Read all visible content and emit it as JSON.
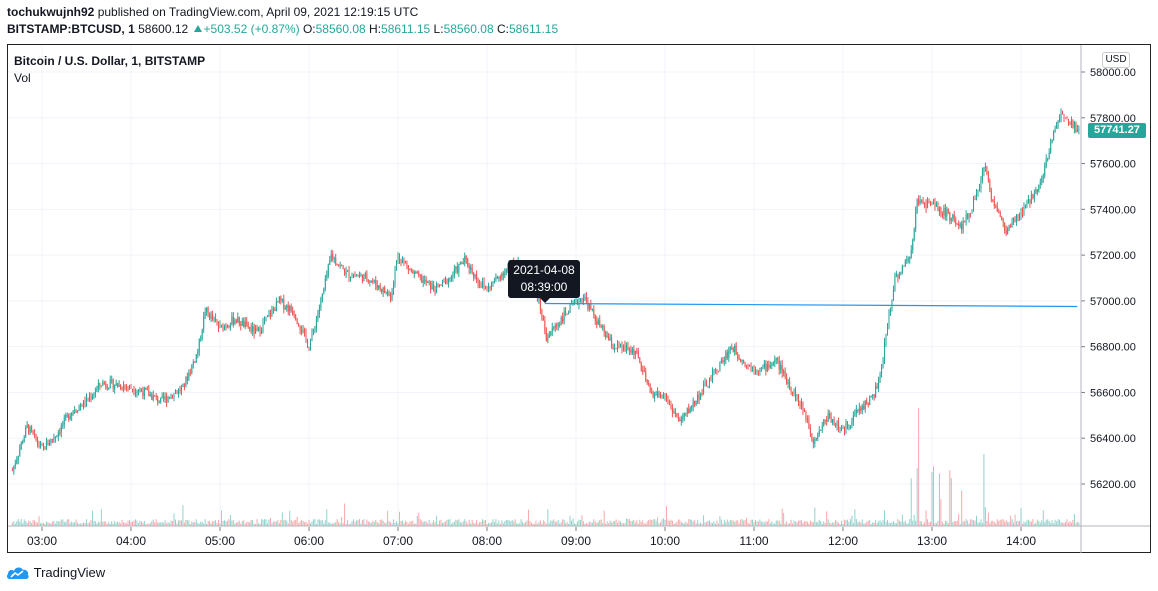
{
  "header": {
    "user": "tochukwujnh92",
    "published_text": "published on TradingView.com, April 09, 2021 12:19:15 UTC",
    "symbol": "BITSTAMP:BTCUSD, 1",
    "last_price": "58600.12",
    "change": "+503.52 (+0.87%)",
    "o_label": "O:",
    "o_value": "58560.08",
    "h_label": "H:",
    "h_value": "58611.15",
    "l_label": "L:",
    "l_value": "58560.08",
    "c_label": "C:",
    "c_value": "58611.15"
  },
  "legend": {
    "title": "Bitcoin / U.S. Dollar, 1, BITSTAMP",
    "volume_label": "Vol"
  },
  "currency_badge": "USD",
  "price_tag": "57741.27",
  "tooltip": {
    "date": "2021-04-08",
    "time": "08:39:00"
  },
  "footer": {
    "brand": "TradingView"
  },
  "colors": {
    "up": "#26a69a",
    "down": "#ef5350",
    "trend_line": "#2196f3",
    "grid": "#f0f3fa"
  },
  "chart_data": {
    "type": "candlestick",
    "x_ticks": [
      "03:00",
      "04:00",
      "05:00",
      "06:00",
      "07:00",
      "08:00",
      "09:00",
      "10:00",
      "11:00",
      "12:00",
      "13:00",
      "14:00"
    ],
    "y_ticks": [
      58000,
      57800,
      57600,
      57400,
      57200,
      57000,
      56800,
      56600,
      56400,
      56200
    ],
    "y_tick_labels": [
      "58000.00",
      "57800.00",
      "57600.00",
      "57400.00",
      "57200.00",
      "57000.00",
      "56800.00",
      "56600.00",
      "56400.00",
      "56200.00"
    ],
    "ylim": [
      56020,
      58070
    ],
    "time_range": [
      "02:40",
      "14:46"
    ],
    "trend_line": {
      "from_time": "08:39",
      "to_time": "14:38",
      "price": 56980
    },
    "close_path": [
      [
        "02:40",
        56260
      ],
      [
        "02:50",
        56450
      ],
      [
        "03:00",
        56350
      ],
      [
        "03:10",
        56420
      ],
      [
        "03:20",
        56520
      ],
      [
        "03:30",
        56560
      ],
      [
        "03:40",
        56640
      ],
      [
        "03:55",
        56630
      ],
      [
        "04:10",
        56600
      ],
      [
        "04:20",
        56560
      ],
      [
        "04:35",
        56620
      ],
      [
        "04:45",
        56780
      ],
      [
        "04:50",
        56960
      ],
      [
        "05:00",
        56880
      ],
      [
        "05:10",
        56920
      ],
      [
        "05:25",
        56860
      ],
      [
        "05:40",
        57000
      ],
      [
        "05:50",
        56950
      ],
      [
        "06:00",
        56800
      ],
      [
        "06:05",
        56920
      ],
      [
        "06:10",
        57050
      ],
      [
        "06:15",
        57200
      ],
      [
        "06:25",
        57120
      ],
      [
        "06:40",
        57100
      ],
      [
        "06:55",
        57020
      ],
      [
        "07:00",
        57200
      ],
      [
        "07:10",
        57120
      ],
      [
        "07:25",
        57050
      ],
      [
        "07:35",
        57100
      ],
      [
        "07:45",
        57180
      ],
      [
        "07:55",
        57080
      ],
      [
        "08:00",
        57050
      ],
      [
        "08:10",
        57120
      ],
      [
        "08:20",
        57180
      ],
      [
        "08:30",
        57100
      ],
      [
        "08:35",
        57000
      ],
      [
        "08:40",
        56840
      ],
      [
        "08:45",
        56880
      ],
      [
        "08:55",
        56960
      ],
      [
        "09:05",
        57020
      ],
      [
        "09:15",
        56900
      ],
      [
        "09:25",
        56800
      ],
      [
        "09:40",
        56780
      ],
      [
        "09:50",
        56600
      ],
      [
        "10:00",
        56580
      ],
      [
        "10:10",
        56470
      ],
      [
        "10:20",
        56560
      ],
      [
        "10:35",
        56700
      ],
      [
        "10:45",
        56800
      ],
      [
        "10:55",
        56720
      ],
      [
        "11:05",
        56700
      ],
      [
        "11:15",
        56740
      ],
      [
        "11:25",
        56620
      ],
      [
        "11:35",
        56500
      ],
      [
        "11:40",
        56390
      ],
      [
        "11:50",
        56500
      ],
      [
        "12:00",
        56430
      ],
      [
        "12:10",
        56520
      ],
      [
        "12:20",
        56580
      ],
      [
        "12:25",
        56660
      ],
      [
        "12:30",
        56900
      ],
      [
        "12:35",
        57100
      ],
      [
        "12:45",
        57180
      ],
      [
        "12:50",
        57430
      ],
      [
        "13:00",
        57420
      ],
      [
        "13:10",
        57380
      ],
      [
        "13:20",
        57330
      ],
      [
        "13:30",
        57450
      ],
      [
        "13:35",
        57600
      ],
      [
        "13:40",
        57460
      ],
      [
        "13:50",
        57300
      ],
      [
        "14:00",
        57380
      ],
      [
        "14:10",
        57480
      ],
      [
        "14:15",
        57560
      ],
      [
        "14:20",
        57680
      ],
      [
        "14:25",
        57800
      ],
      [
        "14:30",
        57820
      ],
      [
        "14:35",
        57770
      ],
      [
        "14:40",
        57740
      ],
      [
        "14:46",
        57740
      ]
    ]
  }
}
